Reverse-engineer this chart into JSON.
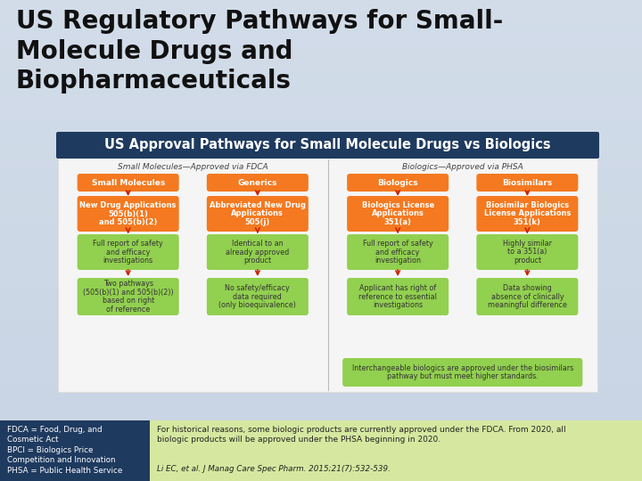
{
  "title": "US Regulatory Pathways for Small-\nMolecule Drugs and\nBiopharmaceuticals",
  "title_fontsize": 20,
  "title_color": "#111111",
  "subtitle": "US Approval Pathways for Small Molecule Drugs vs Biologics",
  "subtitle_fontsize": 10.5,
  "subtitle_bg": "#1e3a5f",
  "subtitle_text_color": "#ffffff",
  "bg_color_top": "#cdd8e8",
  "bg_color_bot": "#b8c8dc",
  "panel_bg": "#f0f0f0",
  "orange_color": "#f47920",
  "green_color": "#92d050",
  "green_light": "#c6e39a",
  "footer_left_bg": "#1e3a5f",
  "footer_right_bg": "#d6e8a0",
  "footer_left_text": "FDCA = Food, Drug, and\nCosmetic Act\nBPCI = Biologics Price\nCompetition and Innovation\nPHSA = Public Health Service",
  "footer_right_text1": "For historical reasons, some biologic products are currently approved under the FDCA. From 2020, all\nbiologic products will be approved under the PHSA beginning in 2020.",
  "footer_right_text2": "Li EC, et al. J Manag Care Spec Pharm. 2015;21(7):532-539.",
  "col1_header": "Small Molecules—Approved via FDCA",
  "col2_header": "Biologics—Approved via PHSA",
  "sm_top1": "Small Molecules",
  "sm_top2": "Generics",
  "bio_top1": "Biologics",
  "bio_top2": "Biosimilars",
  "sm_box1": "New Drug Applications\n505(b)(1)\nand 505(b)(2)",
  "sm_box2": "Abbreviated New Drug\nApplications\n505(j)",
  "bio_box1": "Biologics License\nApplications\n351(a)",
  "bio_box2": "Biosimilar Biologics\nLicense Applications\n351(k)",
  "sm_desc1a": "Full report of safety\nand efficacy\ninvestigations",
  "sm_desc1b": "Two pathways\n(505(b)(1) and 505(b)(2))\nbased on right\nof reference",
  "sm_desc2a": "Identical to an\nalready approved\nproduct",
  "sm_desc2b": "No safety/efficacy\ndata required\n(only bioequivalence)",
  "bio_desc1a": "Full report of safety\nand efficacy\ninvestigation",
  "bio_desc1b": "Applicant has right of\nreference to essential\ninvestigations",
  "bio_desc2a": "Highly similar\nto a 351(a)\nproduct",
  "bio_desc2b": "Data showing\nabsence of clinically\nmeaningful difference",
  "interchangeable": "Interchangeable biologics are approved under the biosimilars\npathway but must meet higher standards.",
  "arrow_color": "#cc2200"
}
